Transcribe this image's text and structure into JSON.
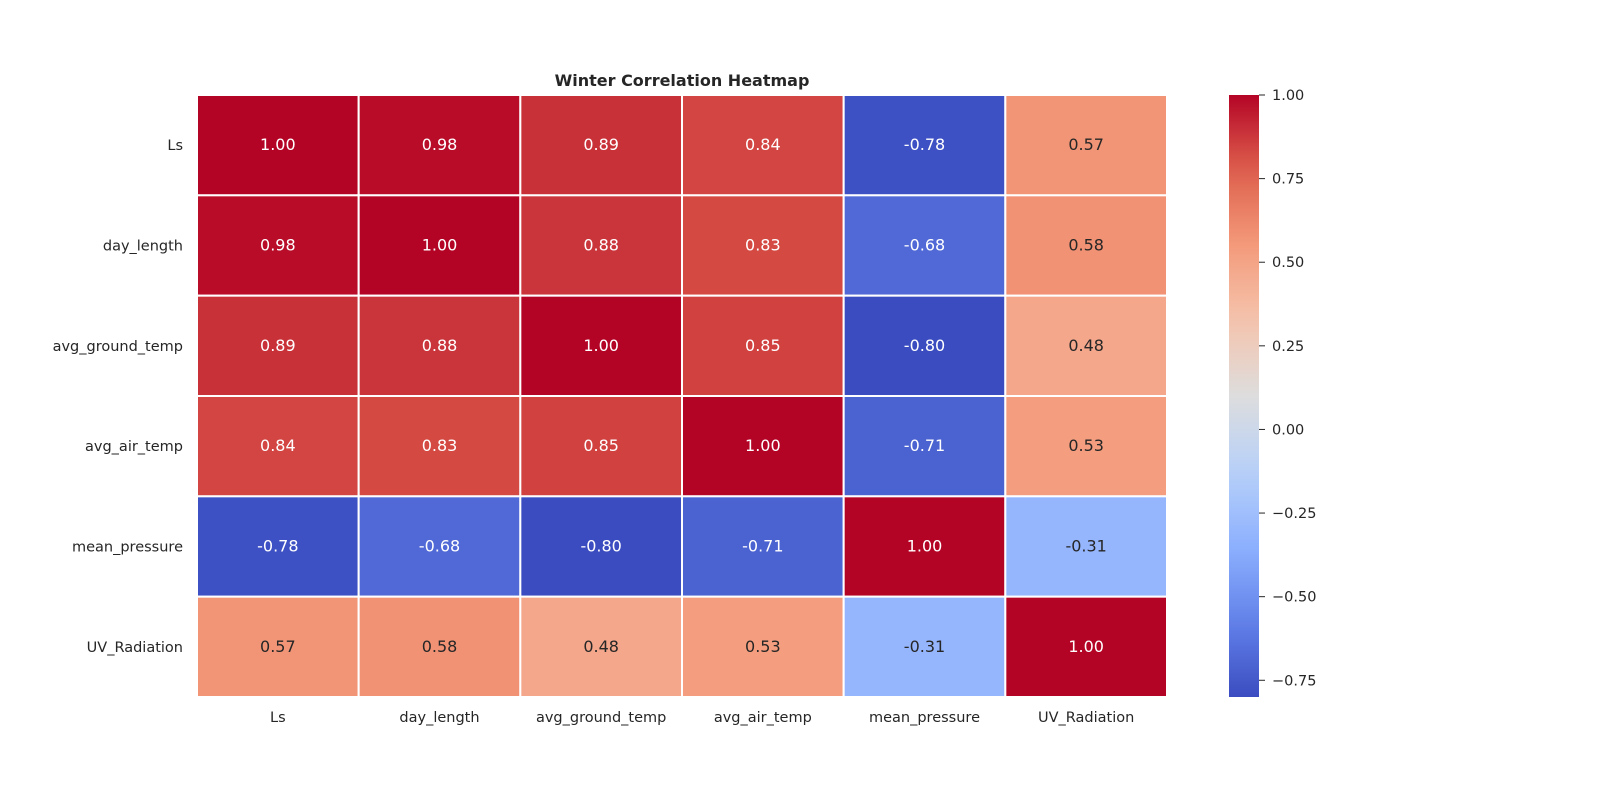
{
  "chart_data": {
    "type": "heatmap",
    "title": "Winter Correlation Heatmap",
    "xlabel": "",
    "ylabel": "",
    "rows": [
      "Ls",
      "day_length",
      "avg_ground_temp",
      "avg_air_temp",
      "mean_pressure",
      "UV_Radiation"
    ],
    "columns": [
      "Ls",
      "day_length",
      "avg_ground_temp",
      "avg_air_temp",
      "mean_pressure",
      "UV_Radiation"
    ],
    "values": [
      [
        1.0,
        0.98,
        0.89,
        0.84,
        -0.78,
        0.57
      ],
      [
        0.98,
        1.0,
        0.88,
        0.83,
        -0.68,
        0.58
      ],
      [
        0.89,
        0.88,
        1.0,
        0.85,
        -0.8,
        0.48
      ],
      [
        0.84,
        0.83,
        0.85,
        1.0,
        -0.71,
        0.53
      ],
      [
        -0.78,
        -0.68,
        -0.8,
        -0.71,
        1.0,
        -0.31
      ],
      [
        0.57,
        0.58,
        0.48,
        0.53,
        -0.31,
        1.0
      ]
    ],
    "annotations": [
      [
        "1.00",
        "0.98",
        "0.89",
        "0.84",
        "-0.78",
        "0.57"
      ],
      [
        "0.98",
        "1.00",
        "0.88",
        "0.83",
        "-0.68",
        "0.58"
      ],
      [
        "0.89",
        "0.88",
        "1.00",
        "0.85",
        "-0.80",
        "0.48"
      ],
      [
        "0.84",
        "0.83",
        "0.85",
        "1.00",
        "-0.71",
        "0.53"
      ],
      [
        "-0.78",
        "-0.68",
        "-0.80",
        "-0.71",
        "1.00",
        "-0.31"
      ],
      [
        "0.57",
        "0.58",
        "0.48",
        "0.53",
        "-0.31",
        "1.00"
      ]
    ],
    "colormap": "coolwarm",
    "vmin": -0.8,
    "vmax": 1.0,
    "colorbar": {
      "ticks": [
        1.0,
        0.75,
        0.5,
        0.25,
        0.0,
        -0.25,
        -0.5,
        -0.75
      ],
      "tick_labels": [
        "1.00",
        "0.75",
        "0.50",
        "0.25",
        "0.00",
        "−0.25",
        "−0.50",
        "−0.75"
      ],
      "placement": "right"
    },
    "grid": false
  },
  "colors": {
    "cell_border": "#ffffff",
    "text_dark": "#262626",
    "text_light": "#ffffff"
  }
}
